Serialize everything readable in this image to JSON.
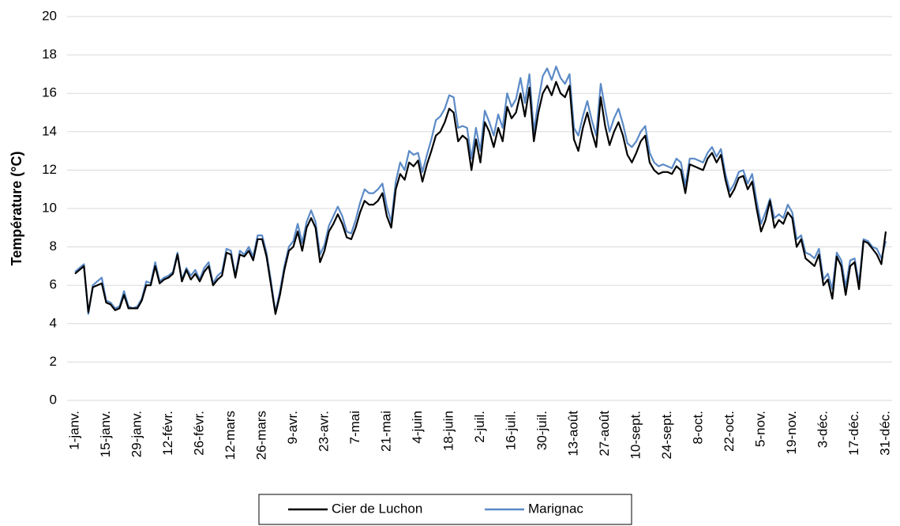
{
  "chart_data": {
    "type": "line",
    "y_label": "Température (°C)",
    "categories": [
      "1-janv.",
      null,
      null,
      null,
      null,
      null,
      null,
      "15-janv.",
      null,
      null,
      null,
      null,
      null,
      null,
      "29-janv.",
      null,
      null,
      null,
      null,
      null,
      null,
      "12-févr.",
      null,
      null,
      null,
      null,
      null,
      null,
      "26-févr.",
      null,
      null,
      null,
      null,
      null,
      null,
      "12-mars",
      null,
      null,
      null,
      null,
      null,
      null,
      "26-mars",
      null,
      null,
      null,
      null,
      null,
      null,
      "9-avr.",
      null,
      null,
      null,
      null,
      null,
      null,
      "23-avr.",
      null,
      null,
      null,
      null,
      null,
      null,
      "7-mai",
      null,
      null,
      null,
      null,
      null,
      null,
      "21-mai",
      null,
      null,
      null,
      null,
      null,
      null,
      "4-juin",
      null,
      null,
      null,
      null,
      null,
      null,
      "18-juin",
      null,
      null,
      null,
      null,
      null,
      null,
      "2-juil.",
      null,
      null,
      null,
      null,
      null,
      null,
      "16-juil.",
      null,
      null,
      null,
      null,
      null,
      null,
      "30-juil.",
      null,
      null,
      null,
      null,
      null,
      null,
      "13-août",
      null,
      null,
      null,
      null,
      null,
      null,
      "27-août",
      null,
      null,
      null,
      null,
      null,
      null,
      "10-sept.",
      null,
      null,
      null,
      null,
      null,
      null,
      "24-sept.",
      null,
      null,
      null,
      null,
      null,
      null,
      "8-oct.",
      null,
      null,
      null,
      null,
      null,
      null,
      "22-oct.",
      null,
      null,
      null,
      null,
      null,
      null,
      "5-nov.",
      null,
      null,
      null,
      null,
      null,
      null,
      "19-nov.",
      null,
      null,
      null,
      null,
      null,
      null,
      "3-déc.",
      null,
      null,
      null,
      null,
      null,
      null,
      "17-déc.",
      null,
      null,
      null,
      null,
      null,
      null,
      "31-déc."
    ],
    "series": [
      {
        "name": "Cier de Luchon",
        "color": "#000000",
        "values": [
          6.6,
          6.8,
          7.0,
          4.6,
          5.9,
          6.0,
          6.1,
          5.1,
          5.0,
          4.7,
          4.8,
          5.5,
          4.8,
          4.8,
          4.8,
          5.2,
          6.0,
          6.0,
          7.0,
          6.1,
          6.3,
          6.4,
          6.6,
          7.6,
          6.2,
          6.8,
          6.3,
          6.6,
          6.2,
          6.7,
          7.0,
          6.0,
          6.3,
          6.5,
          7.7,
          7.6,
          6.4,
          7.6,
          7.5,
          7.8,
          7.3,
          8.4,
          8.4,
          7.5,
          6.0,
          4.5,
          5.5,
          6.8,
          7.8,
          8.0,
          8.8,
          7.8,
          9.0,
          9.5,
          9.0,
          7.2,
          7.8,
          8.8,
          9.2,
          9.7,
          9.2,
          8.5,
          8.4,
          9.0,
          9.8,
          10.4,
          10.2,
          10.2,
          10.4,
          10.8,
          9.6,
          9.0,
          11.0,
          11.8,
          11.5,
          12.4,
          12.2,
          12.5,
          11.4,
          12.3,
          13.0,
          13.8,
          14.0,
          14.5,
          15.2,
          15.0,
          13.5,
          13.8,
          13.6,
          12.0,
          13.6,
          12.4,
          14.5,
          14.0,
          13.2,
          14.2,
          13.5,
          15.3,
          14.7,
          15.0,
          16.0,
          14.8,
          16.3,
          13.5,
          15.0,
          16.0,
          16.4,
          15.9,
          16.6,
          16.0,
          15.8,
          16.4,
          13.6,
          13.0,
          14.2,
          15.0,
          14.0,
          13.2,
          15.8,
          14.3,
          13.3,
          14.0,
          14.5,
          13.8,
          12.8,
          12.4,
          12.9,
          13.5,
          13.8,
          12.4,
          12.0,
          11.8,
          11.9,
          11.9,
          11.8,
          12.2,
          12.0,
          10.8,
          12.3,
          12.2,
          12.1,
          12.0,
          12.6,
          12.9,
          12.4,
          12.8,
          11.5,
          10.6,
          11.0,
          11.6,
          11.7,
          11.0,
          11.4,
          10.0,
          8.8,
          9.4,
          10.4,
          9.0,
          9.4,
          9.2,
          9.8,
          9.5,
          8.0,
          8.4,
          7.4,
          7.2,
          7.0,
          7.6,
          6.0,
          6.3,
          5.3,
          7.5,
          7.0,
          5.5,
          7.0,
          7.2,
          5.8,
          8.3,
          8.2,
          7.9,
          7.6,
          7.1,
          8.8
        ]
      },
      {
        "name": "Marignac",
        "color": "#5b8ac6",
        "values": [
          6.7,
          6.9,
          7.1,
          4.5,
          6.0,
          6.2,
          6.4,
          5.2,
          5.1,
          4.8,
          4.9,
          5.7,
          4.9,
          4.8,
          4.9,
          5.3,
          6.2,
          6.1,
          7.2,
          6.2,
          6.4,
          6.5,
          6.7,
          7.7,
          6.3,
          6.9,
          6.5,
          6.8,
          6.3,
          6.9,
          7.2,
          6.1,
          6.5,
          6.7,
          7.9,
          7.8,
          6.5,
          7.8,
          7.6,
          8.0,
          7.5,
          8.6,
          8.6,
          7.7,
          6.2,
          4.6,
          5.7,
          7.0,
          8.0,
          8.3,
          9.2,
          8.2,
          9.3,
          9.9,
          9.3,
          7.6,
          8.1,
          9.1,
          9.6,
          10.1,
          9.6,
          8.8,
          8.7,
          9.4,
          10.3,
          11.0,
          10.8,
          10.8,
          11.0,
          11.3,
          10.1,
          9.3,
          11.4,
          12.4,
          12.0,
          13.0,
          12.8,
          12.9,
          11.9,
          12.8,
          13.6,
          14.6,
          14.8,
          15.2,
          15.9,
          15.8,
          14.2,
          14.3,
          14.2,
          12.6,
          14.2,
          13.0,
          15.1,
          14.5,
          13.8,
          14.9,
          14.2,
          16.0,
          15.3,
          15.7,
          16.8,
          15.5,
          17.0,
          14.0,
          15.6,
          16.9,
          17.3,
          16.7,
          17.4,
          16.8,
          16.5,
          17.0,
          14.2,
          13.8,
          14.8,
          15.6,
          14.6,
          13.8,
          16.5,
          15.2,
          14.0,
          14.7,
          15.2,
          14.4,
          13.4,
          13.2,
          13.5,
          14.0,
          14.3,
          12.9,
          12.4,
          12.2,
          12.3,
          12.2,
          12.1,
          12.6,
          12.4,
          11.2,
          12.6,
          12.6,
          12.5,
          12.4,
          12.9,
          13.2,
          12.7,
          13.1,
          11.8,
          10.9,
          11.3,
          11.9,
          12.0,
          11.3,
          11.8,
          10.4,
          9.2,
          9.8,
          10.5,
          9.5,
          9.7,
          9.5,
          10.2,
          9.8,
          8.4,
          8.6,
          7.7,
          7.6,
          7.4,
          7.9,
          6.3,
          6.6,
          5.8,
          7.7,
          7.3,
          5.9,
          7.3,
          7.4,
          6.1,
          8.4,
          8.3,
          8.0,
          7.9,
          7.4,
          8.3
        ]
      }
    ],
    "ylim": [
      0,
      20
    ],
    "yticks": [
      0,
      2,
      4,
      6,
      8,
      10,
      12,
      14,
      16,
      18,
      20
    ],
    "grid": true
  }
}
